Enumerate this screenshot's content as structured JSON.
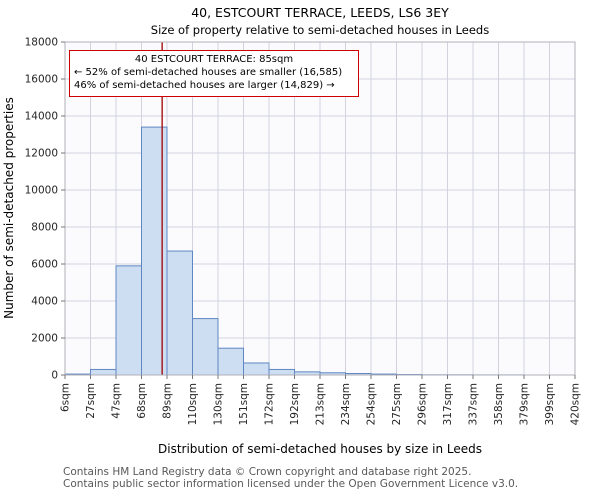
{
  "chart_data": {
    "type": "bar",
    "title": "40, ESTCOURT TERRACE, LEEDS, LS6 3EY",
    "subtitle": "Size of property relative to semi-detached houses in Leeds",
    "xlabel": "Distribution of semi-detached houses by size in Leeds",
    "ylabel": "Number of semi-detached properties",
    "bin_edges_sqm": [
      6,
      27,
      47,
      68,
      89,
      110,
      130,
      151,
      172,
      192,
      213,
      234,
      254,
      275,
      296,
      317,
      337,
      358,
      379,
      399,
      420
    ],
    "tick_labels": [
      "6sqm",
      "27sqm",
      "47sqm",
      "68sqm",
      "89sqm",
      "110sqm",
      "130sqm",
      "151sqm",
      "172sqm",
      "192sqm",
      "213sqm",
      "234sqm",
      "254sqm",
      "275sqm",
      "296sqm",
      "317sqm",
      "337sqm",
      "358sqm",
      "379sqm",
      "399sqm",
      "420sqm"
    ],
    "values": [
      50,
      300,
      5900,
      13400,
      6700,
      3050,
      1450,
      650,
      300,
      170,
      120,
      80,
      50,
      25,
      10,
      10,
      5,
      5,
      0,
      0
    ],
    "ylim": [
      0,
      18000
    ],
    "ytick_step": 2000,
    "grid": true,
    "legend": null,
    "marker_value_sqm": 85,
    "annotation": {
      "line1": "40 ESTCOURT TERRACE: 85sqm",
      "line2": "← 52% of semi-detached houses are smaller (16,585)",
      "line3": "46% of semi-detached houses are larger (14,829) →"
    },
    "colors": {
      "bar_fill": "#cdddf2",
      "bar_stroke": "#5f87c2",
      "marker_line": "#a00000",
      "annotation_border": "#cc0000",
      "grid": "#d3d3e0",
      "plot_bg": "#fbfbfe",
      "spine": "#b0b0b8",
      "tick": "#777777",
      "text": "#262626"
    }
  },
  "footer": {
    "line1": "Contains HM Land Registry data © Crown copyright and database right 2025.",
    "line2": "Contains public sector information licensed under the Open Government Licence v3.0."
  }
}
